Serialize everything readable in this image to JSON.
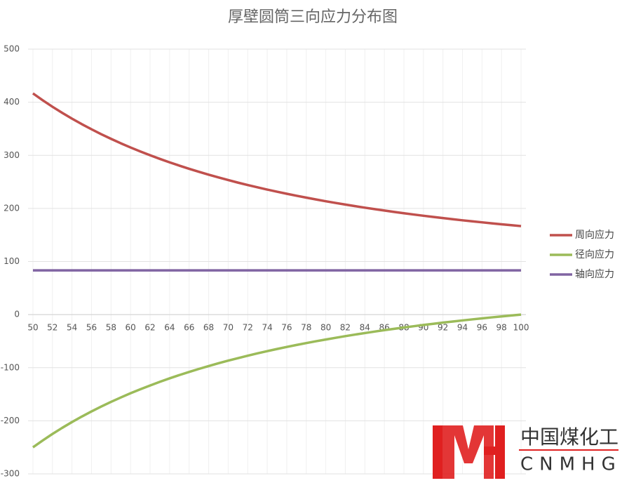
{
  "chart_data": {
    "type": "line",
    "title": "厚壁圆筒三向应力分布图",
    "x": [
      50,
      51,
      52,
      53,
      54,
      55,
      56,
      57,
      58,
      59,
      60,
      61,
      62,
      63,
      64,
      65,
      66,
      67,
      68,
      69,
      70,
      71,
      72,
      73,
      74,
      75,
      76,
      77,
      78,
      79,
      80,
      81,
      82,
      83,
      84,
      85,
      86,
      87,
      88,
      89,
      90,
      91,
      92,
      93,
      94,
      95,
      96,
      97,
      98,
      99,
      100
    ],
    "xlim": [
      49.5,
      100.5
    ],
    "xticks": [
      50,
      52,
      54,
      56,
      58,
      60,
      62,
      64,
      66,
      68,
      70,
      72,
      74,
      76,
      78,
      80,
      82,
      84,
      86,
      88,
      90,
      92,
      94,
      96,
      98,
      100
    ],
    "ylim": [
      -300,
      500
    ],
    "yticks": [
      -300,
      -200,
      -100,
      0,
      100,
      200,
      300,
      400,
      500
    ],
    "grid": true,
    "legend": "right",
    "series": [
      {
        "name": "周向应力",
        "color": "#c0504d",
        "values": [
          416.7,
          403.7,
          391.5,
          380.0,
          369.1,
          358.8,
          349.1,
          339.8,
          331.1,
          322.7,
          314.8,
          307.3,
          300.1,
          293.3,
          286.8,
          280.6,
          274.6,
          269.0,
          263.6,
          258.4,
          253.4,
          248.6,
          244.1,
          239.7,
          235.5,
          231.5,
          227.6,
          223.9,
          220.3,
          216.9,
          213.5,
          210.3,
          207.3,
          204.3,
          201.4,
          198.7,
          196.0,
          193.4,
          190.9,
          188.5,
          186.2,
          184.0,
          181.8,
          179.7,
          177.6,
          175.7,
          173.8,
          171.9,
          170.1,
          168.4,
          166.7
        ]
      },
      {
        "name": "径向应力",
        "color": "#9bbb59",
        "values": [
          -250.0,
          -237.1,
          -224.8,
          -213.3,
          -202.4,
          -192.1,
          -182.4,
          -173.2,
          -164.4,
          -156.1,
          -148.1,
          -140.6,
          -133.5,
          -126.6,
          -120.1,
          -113.9,
          -108.0,
          -102.3,
          -96.9,
          -91.7,
          -86.7,
          -82.0,
          -77.4,
          -73.0,
          -68.8,
          -64.8,
          -60.9,
          -57.2,
          -53.6,
          -50.2,
          -46.9,
          -43.7,
          -40.6,
          -37.6,
          -34.8,
          -32.0,
          -29.3,
          -26.8,
          -24.3,
          -21.9,
          -19.5,
          -17.3,
          -15.1,
          -13.0,
          -11.0,
          -9.0,
          -7.1,
          -5.2,
          -3.4,
          -1.7,
          0.0
        ]
      },
      {
        "name": "轴向应力",
        "color": "#8064a2",
        "values": [
          83.3,
          83.3,
          83.3,
          83.3,
          83.3,
          83.3,
          83.3,
          83.3,
          83.3,
          83.3,
          83.3,
          83.3,
          83.3,
          83.3,
          83.3,
          83.3,
          83.3,
          83.3,
          83.3,
          83.3,
          83.3,
          83.3,
          83.3,
          83.3,
          83.3,
          83.3,
          83.3,
          83.3,
          83.3,
          83.3,
          83.3,
          83.3,
          83.3,
          83.3,
          83.3,
          83.3,
          83.3,
          83.3,
          83.3,
          83.3,
          83.3,
          83.3,
          83.3,
          83.3,
          83.3,
          83.3,
          83.3,
          83.3,
          83.3,
          83.3,
          83.3
        ]
      }
    ]
  },
  "watermark": {
    "text": "中国煤化工",
    "sub": "CNMHG"
  }
}
